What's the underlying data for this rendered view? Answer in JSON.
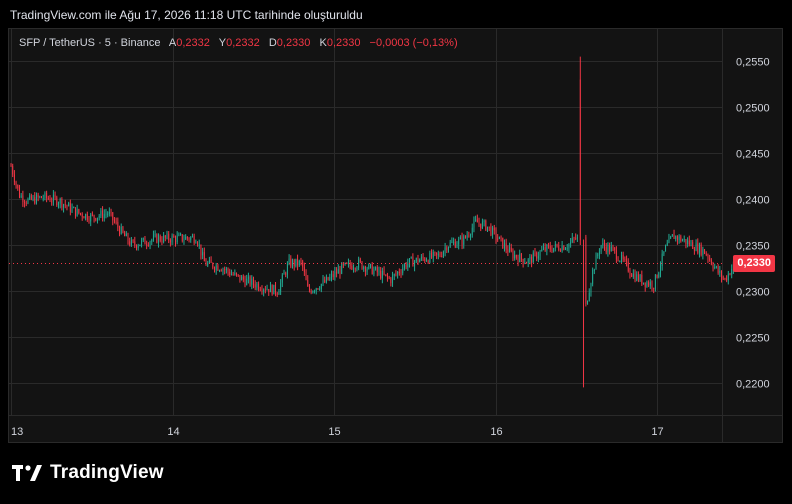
{
  "caption": "TradingView.com ile Ağu 17, 2026 11:18 UTC tarihinde oluşturuldu",
  "brand": {
    "name": "TradingView",
    "logo_icon": "tradingview-logo-icon"
  },
  "header": {
    "symbol": "SFP / TetherUS · 5 · Binance",
    "open_label": "A",
    "open_value": "0,2332",
    "high_label": "Y",
    "high_value": "0,2332",
    "low_label": "D",
    "low_value": "0,2330",
    "close_label": "K",
    "close_value": "0,2330",
    "change": "−0,0003 (−0,13%)"
  },
  "colors": {
    "up": "#22ab94",
    "down": "#f23645",
    "grid": "#2a2a2a",
    "background": "#131313",
    "axis_text": "#d1d4dc"
  },
  "chart_data": {
    "type": "candlestick",
    "interval": "5",
    "x_tick_labels": [
      "13",
      "14",
      "15",
      "16",
      "17"
    ],
    "y_tick_labels": [
      "0,2550",
      "0,2500",
      "0,2450",
      "0,2400",
      "0,2350",
      "0,2300",
      "0,2250",
      "0,2200"
    ],
    "y_ticks": [
      0.255,
      0.25,
      0.245,
      0.24,
      0.235,
      0.23,
      0.225,
      0.22
    ],
    "ylim": [
      0.2165,
      0.2585
    ],
    "xlim": [
      13.0,
      17.7
    ],
    "last_price": 0.233,
    "last_price_label": "0,2330",
    "grid": true,
    "price_path": [
      [
        13.0,
        0.2436
      ],
      [
        13.05,
        0.2405
      ],
      [
        13.1,
        0.2398
      ],
      [
        13.2,
        0.2402
      ],
      [
        13.3,
        0.2398
      ],
      [
        13.4,
        0.2386
      ],
      [
        13.5,
        0.238
      ],
      [
        13.6,
        0.2385
      ],
      [
        13.7,
        0.236
      ],
      [
        13.75,
        0.235
      ],
      [
        13.9,
        0.2357
      ],
      [
        14.0,
        0.2357
      ],
      [
        14.15,
        0.2358
      ],
      [
        14.18,
        0.234
      ],
      [
        14.2,
        0.233
      ],
      [
        14.3,
        0.2326
      ],
      [
        14.4,
        0.2315
      ],
      [
        14.55,
        0.2305
      ],
      [
        14.65,
        0.23
      ],
      [
        14.72,
        0.233
      ],
      [
        14.8,
        0.233
      ],
      [
        14.84,
        0.23
      ],
      [
        14.95,
        0.231
      ],
      [
        15.05,
        0.2325
      ],
      [
        15.15,
        0.233
      ],
      [
        15.25,
        0.2322
      ],
      [
        15.35,
        0.2312
      ],
      [
        15.45,
        0.233
      ],
      [
        15.55,
        0.2335
      ],
      [
        15.65,
        0.2338
      ],
      [
        15.7,
        0.235
      ],
      [
        15.8,
        0.2355
      ],
      [
        15.88,
        0.2375
      ],
      [
        15.95,
        0.237
      ],
      [
        16.0,
        0.236
      ],
      [
        16.1,
        0.234
      ],
      [
        16.2,
        0.2332
      ],
      [
        16.3,
        0.2345
      ],
      [
        16.45,
        0.235
      ],
      [
        16.5,
        0.2358
      ],
      [
        16.53,
        0.235
      ],
      [
        16.545,
        0.2225
      ],
      [
        16.56,
        0.2285
      ],
      [
        16.6,
        0.232
      ],
      [
        16.65,
        0.235
      ],
      [
        16.72,
        0.2345
      ],
      [
        16.8,
        0.233
      ],
      [
        16.85,
        0.2318
      ],
      [
        16.92,
        0.231
      ],
      [
        16.98,
        0.2307
      ],
      [
        17.05,
        0.2345
      ],
      [
        17.1,
        0.236
      ],
      [
        17.2,
        0.2352
      ],
      [
        17.3,
        0.2342
      ],
      [
        17.38,
        0.232
      ],
      [
        17.42,
        0.2312
      ],
      [
        17.48,
        0.233
      ]
    ],
    "spike_candle": {
      "x": 16.525,
      "open": 0.253,
      "high": 0.2555,
      "low": 0.235,
      "close": 0.2355
    },
    "dip_candle": {
      "x": 16.545,
      "open": 0.235,
      "high": 0.2356,
      "low": 0.2195,
      "close": 0.226
    }
  }
}
